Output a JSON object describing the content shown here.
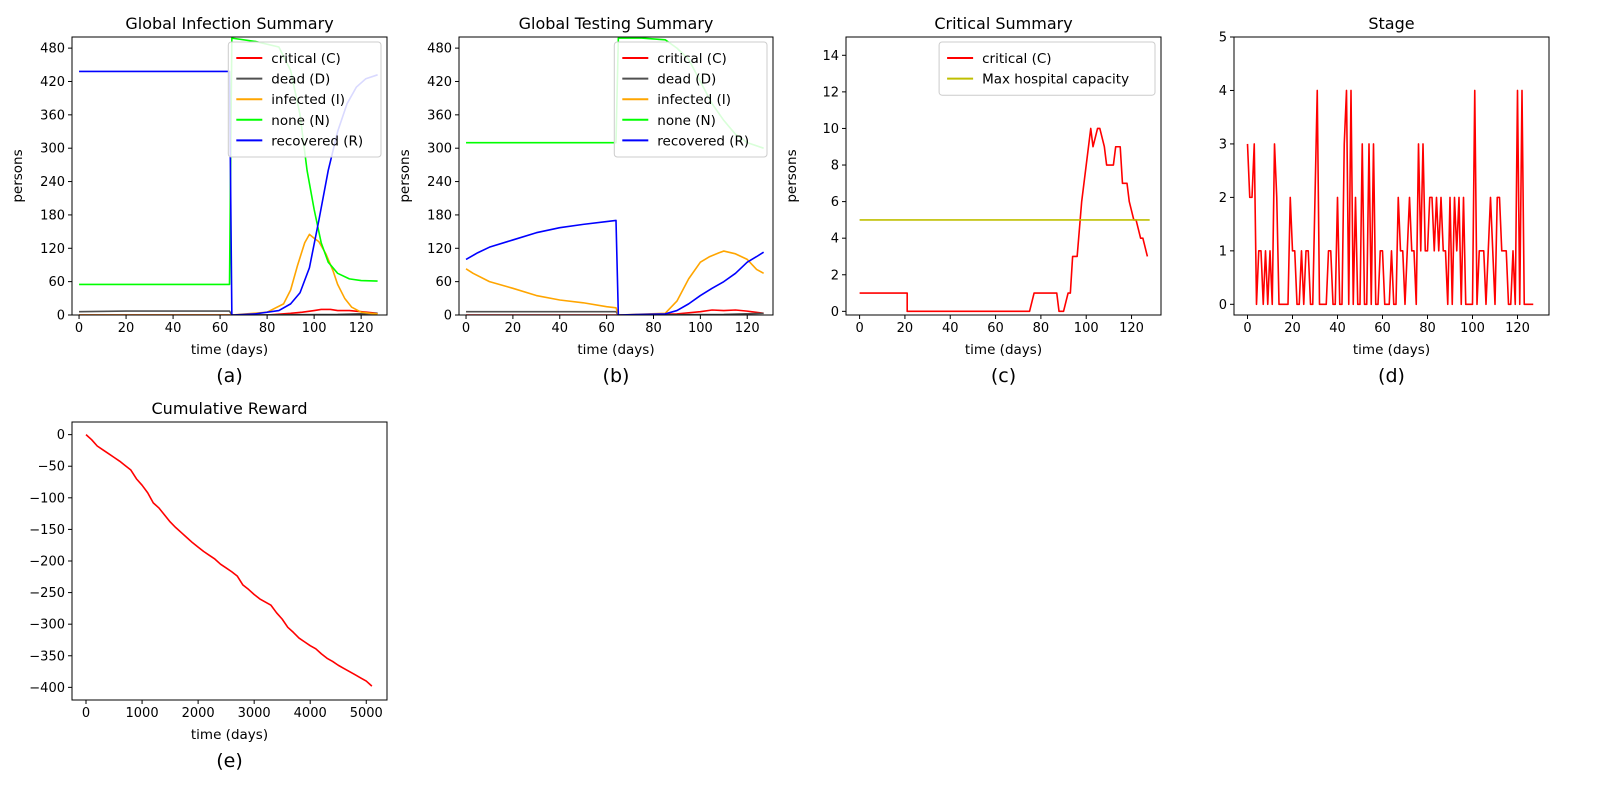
{
  "chart_data": [
    {
      "id": "a",
      "type": "line",
      "title": "Global Infection Summary",
      "xlabel": "time (days)",
      "ylabel": "persons",
      "caption": "(a)",
      "xlim": [
        -3,
        131
      ],
      "ylim": [
        0,
        500
      ],
      "xticks": [
        0,
        20,
        40,
        60,
        80,
        100,
        120
      ],
      "yticks": [
        0,
        60,
        120,
        180,
        240,
        300,
        360,
        420,
        480
      ],
      "legend_position": "upper-right",
      "series": [
        {
          "name": "critical (C)",
          "color": "#ff0000",
          "x": [
            0,
            65,
            80,
            90,
            95,
            100,
            103,
            107,
            110,
            115,
            120,
            127
          ],
          "y": [
            0,
            0,
            0,
            3,
            5,
            8,
            10,
            10,
            8,
            8,
            6,
            3
          ]
        },
        {
          "name": "dead (D)",
          "color": "#505050",
          "x": [
            0,
            20,
            64,
            65,
            110,
            127
          ],
          "y": [
            6,
            7,
            7,
            0,
            1,
            3
          ]
        },
        {
          "name": "infected (I)",
          "color": "#ffa500",
          "x": [
            0,
            64,
            65,
            80,
            87,
            90,
            93,
            96,
            98,
            100,
            102,
            105,
            108,
            110,
            113,
            116,
            120,
            124,
            127
          ],
          "y": [
            0,
            0,
            0,
            5,
            20,
            45,
            90,
            130,
            145,
            138,
            132,
            110,
            80,
            55,
            30,
            14,
            5,
            3,
            2
          ]
        },
        {
          "name": "none (N)",
          "color": "#00ff00",
          "x": [
            0,
            64,
            65,
            75,
            85,
            90,
            94,
            97,
            100,
            103,
            106,
            110,
            115,
            120,
            127
          ],
          "y": [
            55,
            55,
            498,
            492,
            482,
            440,
            360,
            260,
            190,
            130,
            95,
            75,
            65,
            62,
            61
          ]
        },
        {
          "name": "recovered (R)",
          "color": "#0000ff",
          "x": [
            0,
            64,
            65,
            75,
            85,
            90,
            94,
            98,
            102,
            106,
            110,
            114,
            118,
            122,
            127
          ],
          "y": [
            438,
            438,
            0,
            2,
            8,
            20,
            40,
            85,
            170,
            260,
            330,
            380,
            410,
            425,
            432
          ]
        }
      ]
    },
    {
      "id": "b",
      "type": "line",
      "title": "Global Testing Summary",
      "xlabel": "time (days)",
      "ylabel": "persons",
      "caption": "(b)",
      "xlim": [
        -3,
        131
      ],
      "ylim": [
        0,
        500
      ],
      "xticks": [
        0,
        20,
        40,
        60,
        80,
        100,
        120
      ],
      "yticks": [
        0,
        60,
        120,
        180,
        240,
        300,
        360,
        420,
        480
      ],
      "legend_position": "upper-right",
      "series": [
        {
          "name": "critical (C)",
          "color": "#ff0000",
          "x": [
            0,
            65,
            90,
            100,
            105,
            110,
            115,
            120,
            127
          ],
          "y": [
            0,
            0,
            2,
            6,
            9,
            8,
            9,
            7,
            3
          ]
        },
        {
          "name": "dead (D)",
          "color": "#505050",
          "x": [
            0,
            64,
            65,
            110,
            127
          ],
          "y": [
            6,
            6,
            0,
            1,
            3
          ]
        },
        {
          "name": "infected (I)",
          "color": "#ffa500",
          "x": [
            0,
            3,
            10,
            20,
            30,
            40,
            50,
            60,
            64,
            65,
            85,
            90,
            95,
            100,
            104,
            108,
            110,
            115,
            120,
            124,
            127
          ],
          "y": [
            83,
            75,
            60,
            48,
            35,
            27,
            22,
            15,
            13,
            0,
            3,
            25,
            65,
            95,
            105,
            112,
            115,
            110,
            100,
            82,
            75
          ]
        },
        {
          "name": "none (N)",
          "color": "#00ff00",
          "x": [
            0,
            64,
            65,
            75,
            85,
            90,
            95,
            100,
            105,
            110,
            115,
            120,
            127
          ],
          "y": [
            310,
            310,
            498,
            498,
            495,
            480,
            460,
            420,
            380,
            350,
            325,
            310,
            300
          ]
        },
        {
          "name": "recovered (R)",
          "color": "#0000ff",
          "x": [
            0,
            5,
            10,
            20,
            30,
            40,
            50,
            60,
            64,
            65,
            85,
            90,
            95,
            100,
            105,
            110,
            115,
            120,
            124,
            127
          ],
          "y": [
            100,
            112,
            122,
            135,
            148,
            157,
            163,
            168,
            170,
            0,
            2,
            8,
            20,
            35,
            48,
            60,
            75,
            95,
            105,
            113
          ]
        }
      ]
    },
    {
      "id": "c",
      "type": "line",
      "title": "Critical Summary",
      "xlabel": "time (days)",
      "ylabel": "persons",
      "caption": "(c)",
      "xlim": [
        -6,
        133
      ],
      "ylim": [
        -0.2,
        15
      ],
      "xticks": [
        0,
        20,
        40,
        60,
        80,
        100,
        120
      ],
      "yticks": [
        0,
        2,
        4,
        6,
        8,
        10,
        12,
        14
      ],
      "legend_position": "upper-right",
      "series": [
        {
          "name": "critical (C)",
          "color": "#ff0000",
          "x": [
            0,
            21,
            21,
            75,
            77,
            87,
            88,
            90,
            92,
            93,
            94,
            96,
            98,
            100,
            102,
            103,
            105,
            106,
            108,
            109,
            112,
            113,
            115,
            116,
            118,
            119,
            121,
            122,
            124,
            125,
            127
          ],
          "y": [
            1,
            1,
            0,
            0,
            1,
            1,
            0,
            0,
            1,
            1,
            3,
            3,
            6,
            8,
            10,
            9,
            10,
            10,
            9,
            8,
            8,
            9,
            9,
            7,
            7,
            6,
            5,
            5,
            4,
            4,
            3
          ]
        },
        {
          "name": "Max hospital capacity",
          "color": "#bfbf00",
          "x": [
            0,
            128
          ],
          "y": [
            5,
            5
          ]
        }
      ]
    },
    {
      "id": "d",
      "type": "line",
      "title": "Stage",
      "xlabel": "time (days)",
      "ylabel": "",
      "caption": "(d)",
      "xlim": [
        -6,
        134
      ],
      "ylim": [
        -0.2,
        5
      ],
      "xticks": [
        0,
        20,
        40,
        60,
        80,
        100,
        120
      ],
      "yticks": [
        0,
        1,
        2,
        3,
        4,
        5
      ],
      "legend_position": "none",
      "series": [
        {
          "name": "",
          "color": "#ff0000",
          "x": [
            0,
            1,
            2,
            3,
            4,
            5,
            6,
            7,
            8,
            9,
            10,
            11,
            12,
            13,
            14,
            15,
            16,
            17,
            18,
            19,
            20,
            21,
            22,
            23,
            24,
            25,
            26,
            27,
            28,
            29,
            30,
            31,
            32,
            33,
            34,
            35,
            36,
            37,
            38,
            39,
            40,
            41,
            42,
            43,
            44,
            45,
            46,
            47,
            48,
            49,
            50,
            51,
            52,
            53,
            54,
            55,
            56,
            57,
            58,
            59,
            60,
            61,
            62,
            63,
            64,
            65,
            66,
            67,
            68,
            69,
            70,
            71,
            72,
            73,
            74,
            75,
            76,
            77,
            78,
            79,
            80,
            81,
            82,
            83,
            84,
            85,
            86,
            87,
            88,
            89,
            90,
            91,
            92,
            93,
            94,
            95,
            96,
            97,
            98,
            99,
            100,
            101,
            102,
            103,
            104,
            105,
            106,
            107,
            108,
            109,
            110,
            111,
            112,
            113,
            114,
            115,
            116,
            117,
            118,
            119,
            120,
            121,
            122,
            123,
            124,
            125,
            126,
            127
          ],
          "y": [
            3,
            2,
            2,
            3,
            0,
            1,
            1,
            0,
            1,
            0,
            1,
            0,
            3,
            2,
            0,
            0,
            0,
            0,
            0,
            2,
            1,
            1,
            0,
            0,
            1,
            0,
            1,
            1,
            0,
            0,
            2,
            4,
            0,
            0,
            0,
            0,
            1,
            1,
            0,
            0,
            2,
            0,
            0,
            3,
            4,
            0,
            4,
            0,
            2,
            0,
            0,
            3,
            0,
            0,
            3,
            0,
            3,
            0,
            0,
            1,
            1,
            0,
            0,
            0,
            1,
            0,
            0,
            2,
            1,
            1,
            0,
            1,
            2,
            1,
            1,
            0,
            3,
            1,
            3,
            1,
            1,
            2,
            2,
            1,
            2,
            1,
            2,
            1,
            1,
            0,
            2,
            0,
            2,
            1,
            2,
            0,
            2,
            0,
            0,
            0,
            0,
            4,
            0,
            1,
            1,
            1,
            0,
            1,
            2,
            1,
            0,
            2,
            2,
            1,
            1,
            1,
            0,
            0,
            1,
            0,
            4,
            0,
            4,
            0,
            0,
            0,
            0,
            0
          ]
        }
      ]
    },
    {
      "id": "e",
      "type": "line",
      "title": "Cumulative Reward",
      "xlabel": "time (days)",
      "ylabel": "",
      "caption": "(e)",
      "xlim": [
        -250,
        5370
      ],
      "ylim": [
        -420,
        20
      ],
      "xticks": [
        0,
        1000,
        2000,
        3000,
        4000,
        5000
      ],
      "yticks": [
        0,
        -50,
        -100,
        -150,
        -200,
        -250,
        -300,
        -350,
        -400
      ],
      "legend_position": "none",
      "series": [
        {
          "name": "",
          "color": "#ff0000",
          "x": [
            0,
            100,
            200,
            300,
            400,
            500,
            600,
            700,
            800,
            900,
            1000,
            1100,
            1200,
            1300,
            1400,
            1500,
            1600,
            1700,
            1800,
            1900,
            2000,
            2100,
            2200,
            2300,
            2400,
            2500,
            2600,
            2700,
            2800,
            2900,
            3000,
            3100,
            3200,
            3300,
            3400,
            3500,
            3600,
            3700,
            3800,
            3900,
            4000,
            4100,
            4200,
            4300,
            4400,
            4500,
            4600,
            4700,
            4800,
            4900,
            5000,
            5100
          ],
          "y": [
            0,
            -8,
            -18,
            -24,
            -30,
            -36,
            -42,
            -49,
            -56,
            -70,
            -80,
            -92,
            -108,
            -116,
            -127,
            -138,
            -147,
            -155,
            -163,
            -171,
            -178,
            -185,
            -191,
            -197,
            -205,
            -211,
            -217,
            -224,
            -238,
            -245,
            -253,
            -260,
            -265,
            -270,
            -282,
            -292,
            -305,
            -313,
            -322,
            -328,
            -334,
            -339,
            -347,
            -354,
            -359,
            -365,
            -370,
            -375,
            -380,
            -385,
            -390,
            -398
          ]
        }
      ]
    }
  ]
}
